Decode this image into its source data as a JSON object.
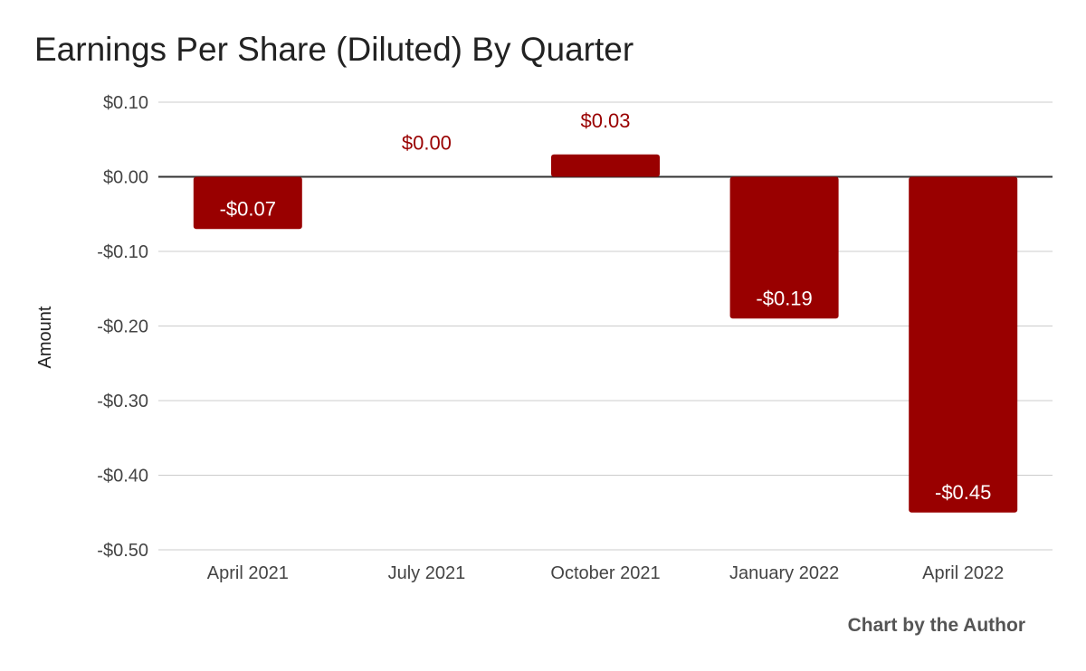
{
  "chart_data": {
    "type": "bar",
    "title": "Earnings Per Share (Diluted) By Quarter",
    "xlabel": "",
    "ylabel": "Amount",
    "categories": [
      "April 2021",
      "July 2021",
      "October 2021",
      "January 2022",
      "April 2022"
    ],
    "values": [
      -0.07,
      0.0,
      0.03,
      -0.19,
      -0.45
    ],
    "data_labels": [
      "-$0.07",
      "$0.00",
      "$0.03",
      "-$0.19",
      "-$0.45"
    ],
    "ylim": [
      -0.5,
      0.1
    ],
    "yticks": [
      0.1,
      0.0,
      -0.1,
      -0.2,
      -0.3,
      -0.4,
      -0.5
    ],
    "ytick_labels": [
      "$0.10",
      "$0.00",
      "-$0.10",
      "-$0.20",
      "-$0.30",
      "-$0.40",
      "-$0.50"
    ],
    "grid": true,
    "legend": "none",
    "bar_color": "#990000",
    "label_inside_color": "#ffffff",
    "label_outside_color": "#990000"
  },
  "footer": {
    "credit": "Chart by the Author"
  }
}
